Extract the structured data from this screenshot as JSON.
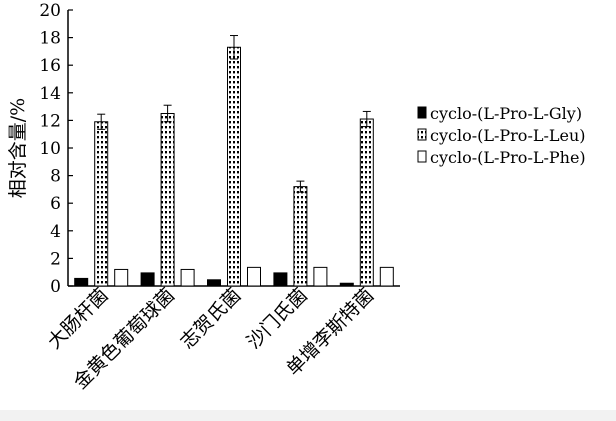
{
  "chart_data": {
    "type": "bar",
    "title": "",
    "xlabel": "",
    "ylabel": "相对含量/%",
    "ylim": [
      0,
      20
    ],
    "yticks": [
      0,
      2,
      4,
      6,
      8,
      10,
      12,
      14,
      16,
      18,
      20
    ],
    "ytick_labels": [
      "0",
      "2",
      "4",
      "6",
      "8",
      "10",
      "12",
      "14",
      "16",
      "18",
      "20"
    ],
    "grid": false,
    "legend_position": "right",
    "categories": [
      "大肠杆菌",
      "金黄色葡萄球菌",
      "志贺氏菌",
      "沙门氏菌",
      "单增李斯特菌"
    ],
    "series": [
      {
        "name": "cyclo-(L-Pro-L-Gly)",
        "fill": "solid",
        "color": "#000000",
        "values": [
          0.55,
          0.95,
          0.45,
          0.95,
          0.2
        ],
        "errors": [
          0,
          0,
          0,
          0,
          0
        ]
      },
      {
        "name": "cyclo-(L-Pro-L-Leu)",
        "fill": "dotted",
        "color": "#000000",
        "values": [
          11.9,
          12.5,
          17.3,
          7.2,
          12.1
        ],
        "errors": [
          0.55,
          0.6,
          0.85,
          0.4,
          0.55
        ]
      },
      {
        "name": "cyclo-(L-Pro-L-Phe)",
        "fill": "hollow",
        "color": "#000000",
        "values": [
          1.2,
          1.2,
          1.35,
          1.35,
          1.35
        ],
        "errors": [
          0,
          0,
          0,
          0,
          0
        ]
      }
    ]
  }
}
